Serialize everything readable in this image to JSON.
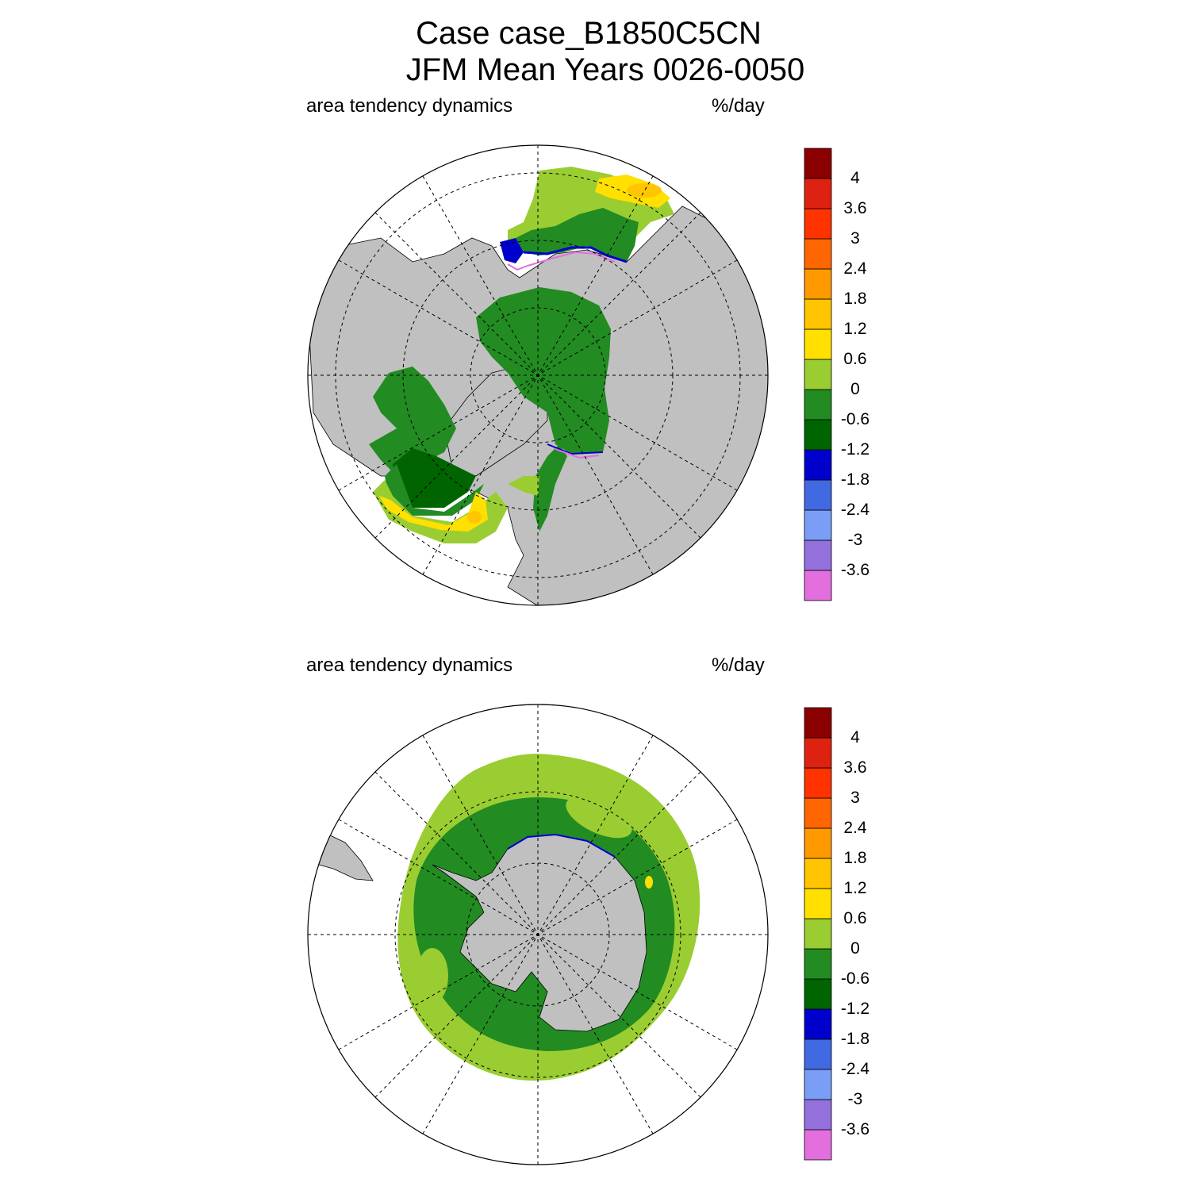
{
  "title": {
    "line1": "Case case_B1850C5CN",
    "line2": "JFM Mean    Years 0026-0050"
  },
  "colors": {
    "ocean_none": "#ffffff",
    "land": "#c0c0c0",
    "palette": [
      "#e36fdf",
      "#9370db",
      "#7a9ef5",
      "#4169e1",
      "#0000cd",
      "#006400",
      "#228b22",
      "#9acd32",
      "#ffe000",
      "#ffc500",
      "#ff9900",
      "#ff6600",
      "#ff3300",
      "#dd2211",
      "#8b0000"
    ]
  },
  "colorbar": {
    "labels": [
      "4",
      "3.6",
      "3",
      "2.4",
      "1.8",
      "1.2",
      "0.6",
      "0",
      "-0.6",
      "-1.2",
      "-1.8",
      "-2.4",
      "-3",
      "-3.6"
    ]
  },
  "panels": [
    {
      "id": "north",
      "left_label": "area tendency dynamics",
      "right_label": "%/day",
      "region": "Arctic",
      "projection": "north polar stereographic",
      "dominant_values": "mostly -0.6 to 0 over Arctic basin; -1.2 to -1.8 along ice edge; 0.6 to 1.8 in Labrador Sea and Sea of Okhotsk"
    },
    {
      "id": "south",
      "left_label": "area tendency dynamics",
      "right_label": "%/day",
      "region": "Antarctic",
      "projection": "south polar stereographic",
      "dominant_values": "-0.6 to 0 near coast; 0 to 0.6 over outer sea-ice ring"
    }
  ]
}
